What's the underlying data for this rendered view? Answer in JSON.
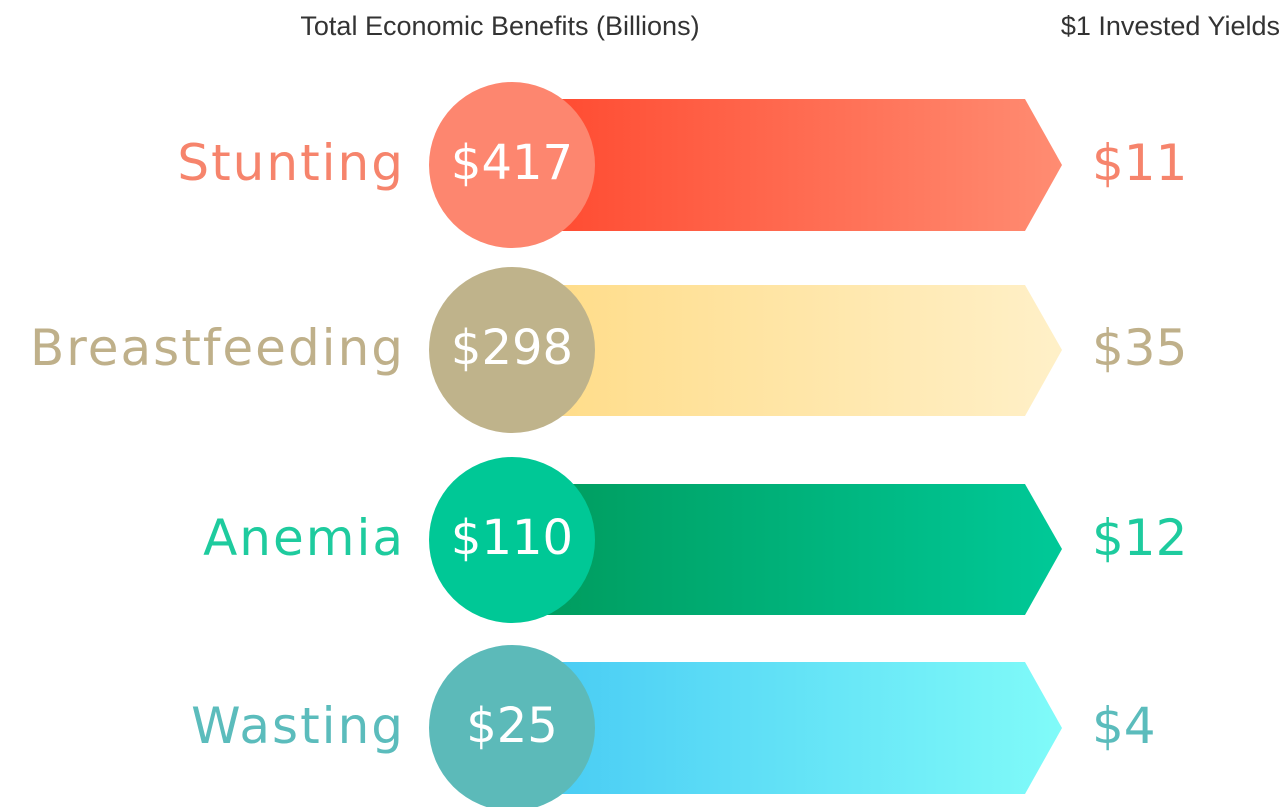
{
  "header": {
    "benefits": "Total Economic Benefits (Billions)",
    "yields": "$1 Invested Yields"
  },
  "rows": [
    {
      "label": "Stunting",
      "benefit": "$417",
      "yield": "$11"
    },
    {
      "label": "Breastfeeding",
      "benefit": "$298",
      "yield": "$35"
    },
    {
      "label": "Anemia",
      "benefit": "$110",
      "yield": "$12"
    },
    {
      "label": "Wasting",
      "benefit": "$25",
      "yield": "$4"
    }
  ]
}
